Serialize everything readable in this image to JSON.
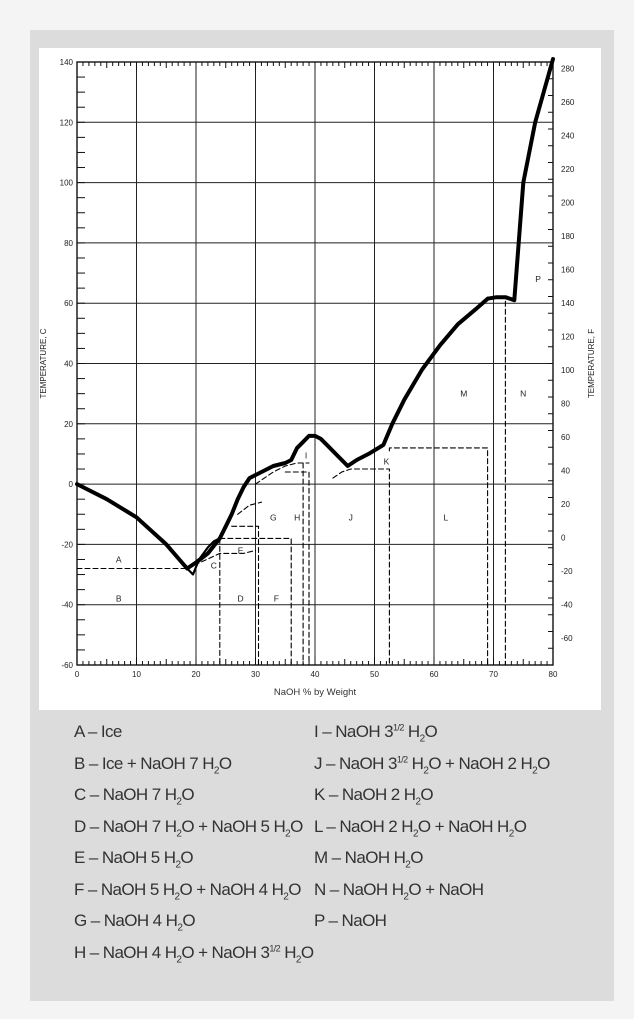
{
  "chart_data": {
    "type": "line",
    "title": "",
    "xlabel": "NaOH % by Weight",
    "ylabel": "TEMPERATURE, C",
    "ylabel_right": "TEMPERATURE, F",
    "xlim": [
      0,
      80
    ],
    "ylim": [
      -60,
      140
    ],
    "x_ticks": [
      0,
      10,
      20,
      30,
      40,
      50,
      60,
      70,
      80
    ],
    "y_ticks": [
      -60,
      -40,
      -20,
      0,
      20,
      40,
      60,
      80,
      100,
      120,
      140
    ],
    "y_ticks_right": [
      -60,
      -40,
      -20,
      0,
      20,
      40,
      60,
      80,
      100,
      120,
      140,
      160,
      180,
      200,
      220,
      240,
      260,
      280
    ],
    "grid": true,
    "series": [
      {
        "style": "solid",
        "points": [
          [
            0,
            0
          ],
          [
            5,
            -5
          ],
          [
            10,
            -11
          ],
          [
            15,
            -20
          ],
          [
            18.5,
            -28
          ],
          [
            20,
            -26
          ],
          [
            22,
            -23
          ],
          [
            24,
            -18
          ],
          [
            25,
            -14
          ],
          [
            26,
            -10
          ],
          [
            27,
            -5
          ],
          [
            28,
            -1
          ],
          [
            29,
            2
          ],
          [
            31,
            4
          ],
          [
            33,
            6
          ],
          [
            35,
            7
          ],
          [
            36,
            8
          ],
          [
            37,
            12
          ],
          [
            38,
            14
          ],
          [
            39,
            16
          ],
          [
            40,
            16
          ],
          [
            41,
            15
          ],
          [
            42,
            13
          ],
          [
            44,
            9
          ],
          [
            45.5,
            6
          ],
          [
            47,
            8
          ],
          [
            49,
            10
          ],
          [
            51.5,
            13
          ],
          [
            53,
            20
          ],
          [
            55,
            28
          ],
          [
            58,
            38
          ],
          [
            61,
            46
          ],
          [
            64,
            53
          ],
          [
            67,
            58
          ],
          [
            69,
            61.5
          ],
          [
            70.5,
            62
          ],
          [
            72,
            62
          ],
          [
            73.5,
            61
          ],
          [
            75,
            100
          ],
          [
            77,
            120
          ],
          [
            80,
            141
          ]
        ]
      },
      {
        "style": "solid",
        "points": [
          [
            18.5,
            -28
          ],
          [
            19.5,
            -30
          ],
          [
            20.5,
            -25
          ],
          [
            22,
            -21
          ],
          [
            23,
            -19
          ],
          [
            24,
            -18
          ]
        ]
      },
      {
        "style": "dashed",
        "points": [
          [
            0,
            -28
          ],
          [
            18.5,
            -28
          ]
        ]
      },
      {
        "style": "dashed",
        "points": [
          [
            18.5,
            -28
          ],
          [
            24,
            -23
          ],
          [
            28,
            -23
          ],
          [
            30,
            -22
          ]
        ]
      },
      {
        "style": "dashed",
        "points": [
          [
            24,
            -18
          ],
          [
            36,
            -18
          ],
          [
            36,
            -60
          ]
        ]
      },
      {
        "style": "dashed",
        "points": [
          [
            24,
            -18
          ],
          [
            24,
            -60
          ]
        ]
      },
      {
        "style": "dashed",
        "points": [
          [
            26,
            -14
          ],
          [
            30.5,
            -14
          ],
          [
            30.5,
            -60
          ]
        ]
      },
      {
        "style": "dashed",
        "points": [
          [
            27,
            -10
          ],
          [
            29,
            -7
          ],
          [
            31,
            -6
          ]
        ]
      },
      {
        "style": "dashed",
        "points": [
          [
            30,
            0
          ],
          [
            33,
            4
          ],
          [
            35,
            6
          ],
          [
            37,
            7
          ],
          [
            39,
            7
          ]
        ]
      },
      {
        "style": "dashed",
        "points": [
          [
            35,
            4
          ],
          [
            39,
            4
          ],
          [
            39,
            -60
          ]
        ]
      },
      {
        "style": "dashed",
        "points": [
          [
            38,
            7
          ],
          [
            38,
            -60
          ]
        ]
      },
      {
        "style": "dashed",
        "points": [
          [
            43,
            2
          ],
          [
            44.5,
            4
          ],
          [
            46,
            5
          ],
          [
            52.5,
            5
          ],
          [
            52.5,
            -60
          ]
        ]
      },
      {
        "style": "dashed",
        "points": [
          [
            52.5,
            11
          ],
          [
            52.5,
            12
          ],
          [
            69,
            12
          ],
          [
            69,
            -60
          ]
        ]
      },
      {
        "style": "dashed",
        "points": [
          [
            70,
            62
          ],
          [
            72,
            62
          ],
          [
            72,
            -60
          ]
        ]
      },
      {
        "style": "dashed",
        "points": [
          [
            69,
            62
          ],
          [
            70,
            62
          ]
        ]
      }
    ],
    "annotations": [
      {
        "text": "A",
        "x": 7,
        "y": -25
      },
      {
        "text": "B",
        "x": 7,
        "y": -38
      },
      {
        "text": "C",
        "x": 23,
        "y": -27
      },
      {
        "text": "D",
        "x": 27.5,
        "y": -38
      },
      {
        "text": "E",
        "x": 27.5,
        "y": -22
      },
      {
        "text": "F",
        "x": 33.5,
        "y": -38
      },
      {
        "text": "G",
        "x": 33,
        "y": -11
      },
      {
        "text": "H",
        "x": 37,
        "y": -11
      },
      {
        "text": "I",
        "x": 38.5,
        "y": 9.5
      },
      {
        "text": "J",
        "x": 46,
        "y": -11
      },
      {
        "text": "K",
        "x": 52,
        "y": 7.5
      },
      {
        "text": "L",
        "x": 62,
        "y": -11
      },
      {
        "text": "M",
        "x": 65,
        "y": 30
      },
      {
        "text": "N",
        "x": 75,
        "y": 30
      },
      {
        "text": "P",
        "x": 77.5,
        "y": 68
      }
    ]
  },
  "legend": [
    {
      "main": "A – Ice"
    },
    {
      "main": "B – Ice + NaOH 7 H",
      "sub": "2",
      "tail": "O"
    },
    {
      "main": "C – NaOH 7 H",
      "sub": "2",
      "tail": "O"
    },
    {
      "main": "D – NaOH 7 H",
      "sub": "2",
      "tail": "O + NaOH 5 H",
      "sub2": "2",
      "tail2": "O"
    },
    {
      "main": "E – NaOH 5 H",
      "sub": "2",
      "tail": "O"
    },
    {
      "main": "F – NaOH 5 H",
      "sub": "2",
      "tail": "O + NaOH 4 H",
      "sub2": "2",
      "tail2": "O"
    },
    {
      "main": "G – NaOH 4 H",
      "sub": "2",
      "tail": "O"
    },
    {
      "main": "H – NaOH 4 H",
      "sub": "2",
      "tail": "O + NaOH 3",
      "sup2": "1/2",
      "tail2": " H",
      "sub3": "2",
      "tail3": "O"
    },
    {
      "main": "I – NaOH 3",
      "sup": "1/2",
      "tail": " H",
      "sub2": "2",
      "tail2": "O"
    },
    {
      "main": "J – NaOH 3",
      "sup": "1/2",
      "tail": " H",
      "sub2": "2",
      "tail2": "O + NaOH 2 H",
      "sub3": "2",
      "tail3": "O"
    },
    {
      "main": "K – NaOH 2 H",
      "sub": "2",
      "tail": "O"
    },
    {
      "main": "L – NaOH 2 H",
      "sub": "2",
      "tail": "O + NaOH H",
      "sub2": "2",
      "tail2": "O"
    },
    {
      "main": "M – NaOH H",
      "sub": "2",
      "tail": "O"
    },
    {
      "main": "N – NaOH H",
      "sub": "2",
      "tail": "O + NaOH"
    },
    {
      "main": "P – NaOH"
    }
  ]
}
